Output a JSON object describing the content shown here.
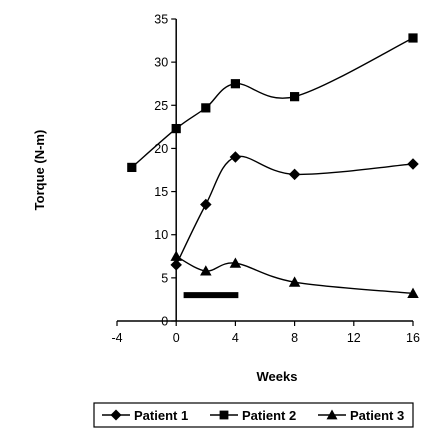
{
  "chart_data": {
    "type": "line",
    "xlabel": "Weeks",
    "ylabel": "Torque (N-m)",
    "xlim": [
      -4,
      16
    ],
    "ylim": [
      0,
      35
    ],
    "x_ticks": [
      -4,
      0,
      4,
      8,
      12,
      16
    ],
    "x_tick_labels": [
      "-4",
      "0",
      "4",
      "8",
      "12",
      "16"
    ],
    "y_ticks": [
      0,
      5,
      10,
      15,
      20,
      25,
      30,
      35
    ],
    "y_tick_labels": [
      "0",
      "5",
      "10",
      "15",
      "20",
      "25",
      "30",
      "35"
    ],
    "grid": false,
    "legend_position": "bottom",
    "series": [
      {
        "name": "Patient 1",
        "marker": "diamond",
        "x": [
          0,
          2,
          4,
          8,
          16
        ],
        "y": [
          6.5,
          13.5,
          19.0,
          17.0,
          18.2
        ]
      },
      {
        "name": "Patient 2",
        "marker": "square",
        "x": [
          -3,
          0,
          2,
          4,
          8,
          16
        ],
        "y": [
          17.8,
          22.3,
          24.7,
          27.5,
          26.0,
          32.8
        ]
      },
      {
        "name": "Patient 3",
        "marker": "triangle",
        "x": [
          0,
          2,
          4,
          8,
          16
        ],
        "y": [
          7.5,
          5.8,
          6.7,
          4.5,
          3.2
        ]
      }
    ],
    "bar_annotation": {
      "x_start": 0.5,
      "x_end": 4.2,
      "y": 3
    }
  }
}
